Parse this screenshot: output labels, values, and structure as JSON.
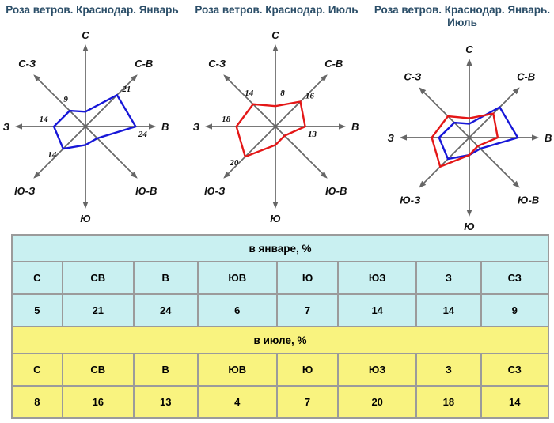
{
  "colors": {
    "title_text": "#2b4e68",
    "axis": "#666666",
    "january_line": "#1717d8",
    "july_line": "#e41717",
    "table_january_bg": "#c9f0f1",
    "table_july_bg": "#f9f37f",
    "table_border": "#9b9b9b",
    "text": "#000000"
  },
  "rose_axis_labels": [
    "С",
    "С-В",
    "В",
    "Ю-В",
    "Ю",
    "Ю-З",
    "З",
    "С-З"
  ],
  "chart_data": [
    {
      "type": "radar",
      "title": "Роза ветров. Краснодар. Январь",
      "categories": [
        "С",
        "СВ",
        "В",
        "ЮВ",
        "Ю",
        "ЮЗ",
        "З",
        "СЗ"
      ],
      "series": [
        {
          "name": "Январь",
          "color": "#1717d8",
          "values": [
            5,
            21,
            24,
            6,
            7,
            14,
            14,
            9
          ]
        }
      ],
      "point_labels": [
        {
          "dir": "СВ",
          "value": 21
        },
        {
          "dir": "В",
          "value": 24
        },
        {
          "dir": "ЮЗ",
          "value": 14
        },
        {
          "dir": "З",
          "value": 14
        },
        {
          "dir": "СЗ",
          "value": 9
        }
      ],
      "axis_labels": [
        "С",
        "С-В",
        "В",
        "Ю-В",
        "Ю",
        "Ю-З",
        "З",
        "С-З"
      ],
      "grid": false,
      "legend": false
    },
    {
      "type": "radar",
      "title": "Роза ветров. Краснодар. Июль",
      "categories": [
        "С",
        "СВ",
        "В",
        "ЮВ",
        "Ю",
        "ЮЗ",
        "З",
        "СЗ"
      ],
      "series": [
        {
          "name": "Июль",
          "color": "#e41717",
          "values": [
            8,
            16,
            13,
            4,
            7,
            20,
            18,
            14
          ]
        }
      ],
      "point_labels": [
        {
          "dir": "С",
          "value": 8
        },
        {
          "dir": "СВ",
          "value": 16
        },
        {
          "dir": "В",
          "value": 13
        },
        {
          "dir": "ЮЗ",
          "value": 20
        },
        {
          "dir": "З",
          "value": 18
        },
        {
          "dir": "СЗ",
          "value": 14
        }
      ],
      "axis_labels": [
        "С",
        "С-В",
        "В",
        "Ю-В",
        "Ю",
        "Ю-З",
        "З",
        "С-З"
      ],
      "grid": false,
      "legend": false
    },
    {
      "type": "radar",
      "title": "Роза ветров. Краснодар. Январь. Июль",
      "categories": [
        "С",
        "СВ",
        "В",
        "ЮВ",
        "Ю",
        "ЮЗ",
        "З",
        "СЗ"
      ],
      "series": [
        {
          "name": "Январь",
          "color": "#1717d8",
          "values": [
            5,
            21,
            24,
            6,
            7,
            14,
            14,
            9
          ]
        },
        {
          "name": "Июль",
          "color": "#e41717",
          "values": [
            8,
            16,
            13,
            4,
            7,
            20,
            18,
            14
          ]
        }
      ],
      "point_labels": [],
      "axis_labels": [
        "С",
        "С-В",
        "В",
        "Ю-В",
        "Ю",
        "Ю-З",
        "З",
        "С-З"
      ],
      "grid": false,
      "legend": false
    }
  ],
  "table": {
    "sections": [
      {
        "header": "в январе, %",
        "columns": [
          "С",
          "СВ",
          "В",
          "ЮВ",
          "Ю",
          "ЮЗ",
          "З",
          "СЗ"
        ],
        "values": [
          5,
          21,
          24,
          6,
          7,
          14,
          14,
          9
        ]
      },
      {
        "header": "в июле, %",
        "columns": [
          "С",
          "СВ",
          "В",
          "ЮВ",
          "Ю",
          "ЮЗ",
          "З",
          "СЗ"
        ],
        "values": [
          8,
          16,
          13,
          4,
          7,
          20,
          18,
          14
        ]
      }
    ]
  }
}
